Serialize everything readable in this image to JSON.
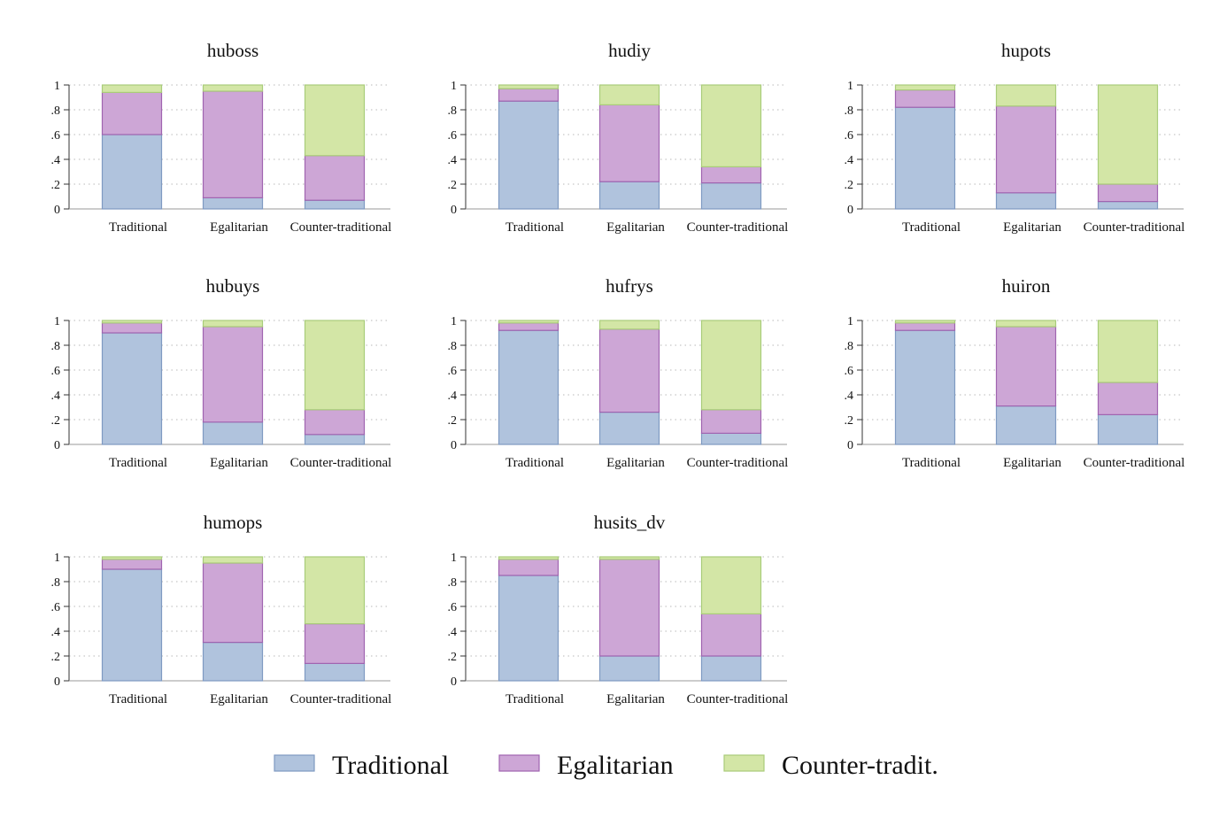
{
  "chart_data": {
    "type": "bar",
    "stacked": true,
    "grid": true,
    "legend_position": "bottom",
    "ylim": [
      0,
      1
    ],
    "yticks": [
      "0",
      ".2",
      ".4",
      ".6",
      ".8",
      "1"
    ],
    "categories": [
      "Traditional",
      "Egalitarian",
      "Counter-traditional"
    ],
    "legend": [
      {
        "key": "traditional",
        "label": "Traditional",
        "fill": "#b0c3dd",
        "stroke": "#7f9ac2"
      },
      {
        "key": "egalitarian",
        "label": "Egalitarian",
        "fill": "#cda6d6",
        "stroke": "#a064b0"
      },
      {
        "key": "counter",
        "label": "Counter-tradit.",
        "fill": "#d3e6a6",
        "stroke": "#a9cc7a"
      }
    ],
    "panels": [
      {
        "title": "huboss",
        "traditional": [
          0.6,
          0.09,
          0.07
        ],
        "egalitarian": [
          0.34,
          0.86,
          0.36
        ],
        "counter": [
          0.06,
          0.05,
          0.57
        ]
      },
      {
        "title": "hudiy",
        "traditional": [
          0.87,
          0.22,
          0.21
        ],
        "egalitarian": [
          0.1,
          0.62,
          0.13
        ],
        "counter": [
          0.03,
          0.16,
          0.66
        ]
      },
      {
        "title": "hupots",
        "traditional": [
          0.82,
          0.13,
          0.06
        ],
        "egalitarian": [
          0.14,
          0.7,
          0.14
        ],
        "counter": [
          0.04,
          0.17,
          0.8
        ]
      },
      {
        "title": "hubuys",
        "traditional": [
          0.9,
          0.18,
          0.08
        ],
        "egalitarian": [
          0.08,
          0.77,
          0.2
        ],
        "counter": [
          0.02,
          0.05,
          0.72
        ]
      },
      {
        "title": "hufrys",
        "traditional": [
          0.92,
          0.26,
          0.09
        ],
        "egalitarian": [
          0.06,
          0.67,
          0.19
        ],
        "counter": [
          0.02,
          0.07,
          0.72
        ]
      },
      {
        "title": "huiron",
        "traditional": [
          0.92,
          0.31,
          0.24
        ],
        "egalitarian": [
          0.06,
          0.64,
          0.26
        ],
        "counter": [
          0.02,
          0.05,
          0.5
        ]
      },
      {
        "title": "humops",
        "traditional": [
          0.9,
          0.31,
          0.14
        ],
        "egalitarian": [
          0.08,
          0.64,
          0.32
        ],
        "counter": [
          0.02,
          0.05,
          0.54
        ]
      },
      {
        "title": "husits_dv",
        "traditional": [
          0.85,
          0.2,
          0.2
        ],
        "egalitarian": [
          0.13,
          0.78,
          0.34
        ],
        "counter": [
          0.02,
          0.02,
          0.46
        ]
      }
    ]
  }
}
